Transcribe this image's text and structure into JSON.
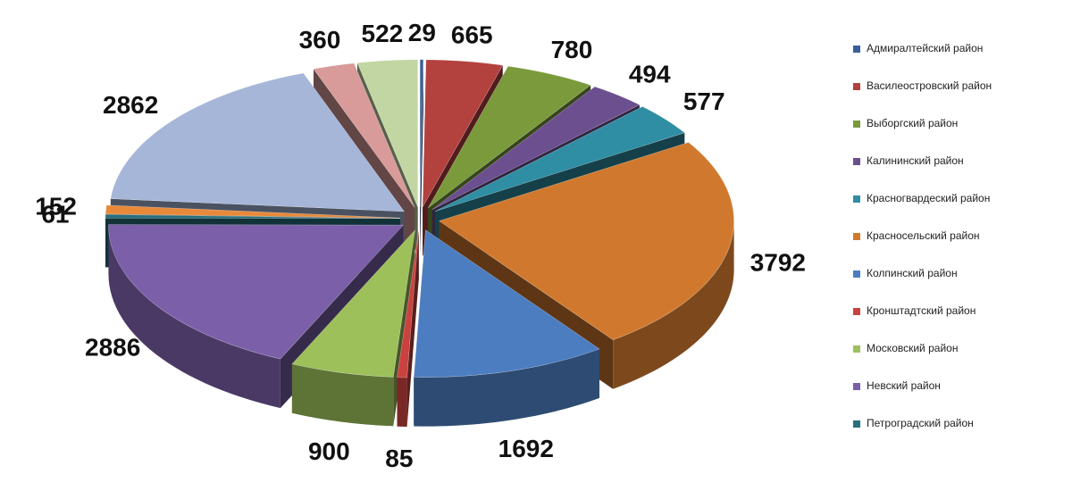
{
  "chart_data": {
    "type": "pie",
    "categories": [
      "Адмиралтейский район",
      "Василеостровский район",
      "Выборгский район",
      "Калининский район",
      "Красногвардеский район",
      "Красносельский район",
      "Колпинский район",
      "Кронштадтский район",
      "Московский район",
      "Невский район",
      "Петроградский район",
      null,
      null,
      null,
      null
    ],
    "values": [
      29,
      665,
      780,
      494,
      577,
      3792,
      1692,
      85,
      900,
      2886,
      61,
      152,
      2862,
      360,
      522
    ],
    "colors": [
      "#3a5f9a",
      "#b3413e",
      "#7a9a3c",
      "#6b4f8f",
      "#2f8ea3",
      "#d0792e",
      "#4c7dc0",
      "#c9423f",
      "#9dc05a",
      "#7b5fa8",
      "#26707e",
      "#e8893a",
      "#a5b6d8",
      "#d99a9a",
      "#c2d6a3"
    ]
  }
}
